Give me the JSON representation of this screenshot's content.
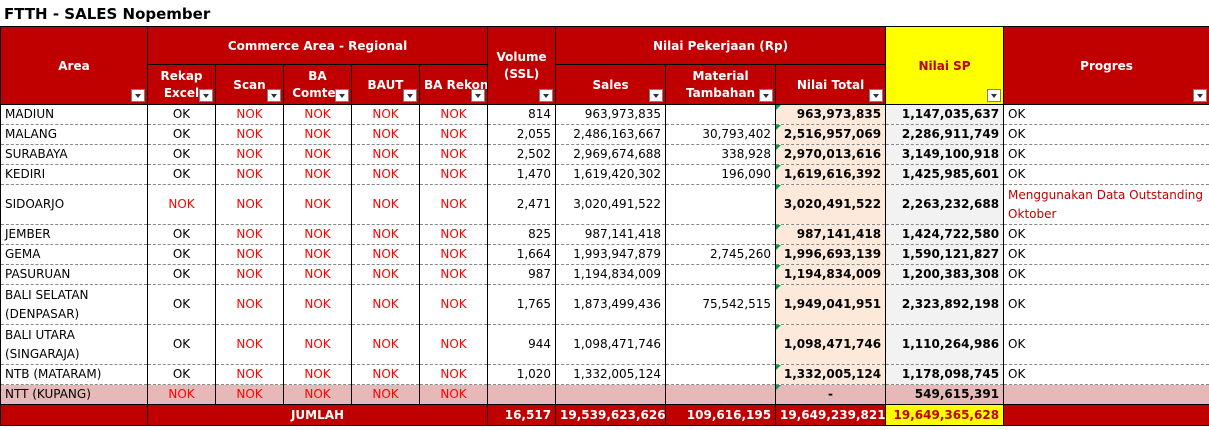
{
  "title": "FTTH - SALES Nopember",
  "headers": {
    "area": "Area",
    "commerce_group": "Commerce Area - Regional",
    "rekap_excel": "Rekap Excel",
    "scan": "Scan",
    "ba_comtes": "BA Comtes",
    "baut": "BAUT",
    "ba_rekon": "BA Rekon",
    "volume": "Volume (SSL)",
    "nilai_group": "Nilai Pekerjaan (Rp)",
    "sales": "Sales",
    "material": "Material Tambahan",
    "nilai_total": "Nilai Total",
    "nilai_sp": "Nilai SP",
    "progres": "Progres"
  },
  "rows": [
    {
      "area": "MADIUN",
      "rekap": "OK",
      "scan": "NOK",
      "ba": "NOK",
      "baut": "NOK",
      "rekon": "NOK",
      "volume": "814",
      "sales": "963,973,835",
      "material": "",
      "total": "963,973,835",
      "sp": "1,147,035,637",
      "progres": "OK"
    },
    {
      "area": "MALANG",
      "rekap": "OK",
      "scan": "NOK",
      "ba": "NOK",
      "baut": "NOK",
      "rekon": "NOK",
      "volume": "2,055",
      "sales": "2,486,163,667",
      "material": "30,793,402",
      "total": "2,516,957,069",
      "sp": "2,286,911,749",
      "progres": "OK"
    },
    {
      "area": "SURABAYA",
      "rekap": "OK",
      "scan": "NOK",
      "ba": "NOK",
      "baut": "NOK",
      "rekon": "NOK",
      "volume": "2,502",
      "sales": "2,969,674,688",
      "material": "338,928",
      "total": "2,970,013,616",
      "sp": "3,149,100,918",
      "progres": "OK"
    },
    {
      "area": "KEDIRI",
      "rekap": "OK",
      "scan": "NOK",
      "ba": "NOK",
      "baut": "NOK",
      "rekon": "NOK",
      "volume": "1,470",
      "sales": "1,619,420,302",
      "material": "196,090",
      "total": "1,619,616,392",
      "sp": "1,425,985,601",
      "progres": "OK"
    },
    {
      "area": "SIDOARJO",
      "rekap": "NOK",
      "scan": "NOK",
      "ba": "NOK",
      "baut": "NOK",
      "rekon": "NOK",
      "volume": "2,471",
      "sales": "3,020,491,522",
      "material": "",
      "total": "3,020,491,522",
      "sp": "2,263,232,688",
      "progres": "Menggunakan Data Outstanding Oktober"
    },
    {
      "area": "JEMBER",
      "rekap": "OK",
      "scan": "NOK",
      "ba": "NOK",
      "baut": "NOK",
      "rekon": "NOK",
      "volume": "825",
      "sales": "987,141,418",
      "material": "",
      "total": "987,141,418",
      "sp": "1,424,722,580",
      "progres": "OK"
    },
    {
      "area": "GEMA",
      "rekap": "OK",
      "scan": "NOK",
      "ba": "NOK",
      "baut": "NOK",
      "rekon": "NOK",
      "volume": "1,664",
      "sales": "1,993,947,879",
      "material": "2,745,260",
      "total": "1,996,693,139",
      "sp": "1,590,121,827",
      "progres": "OK"
    },
    {
      "area": "PASURUAN",
      "rekap": "OK",
      "scan": "NOK",
      "ba": "NOK",
      "baut": "NOK",
      "rekon": "NOK",
      "volume": "987",
      "sales": "1,194,834,009",
      "material": "",
      "total": "1,194,834,009",
      "sp": "1,200,383,308",
      "progres": "OK"
    },
    {
      "area": "BALI SELATAN (DENPASAR)",
      "rekap": "OK",
      "scan": "NOK",
      "ba": "NOK",
      "baut": "NOK",
      "rekon": "NOK",
      "volume": "1,765",
      "sales": "1,873,499,436",
      "material": "75,542,515",
      "total": "1,949,041,951",
      "sp": "2,323,892,198",
      "progres": "OK"
    },
    {
      "area": "BALI UTARA (SINGARAJA)",
      "rekap": "OK",
      "scan": "NOK",
      "ba": "NOK",
      "baut": "NOK",
      "rekon": "NOK",
      "volume": "944",
      "sales": "1,098,471,746",
      "material": "",
      "total": "1,098,471,746",
      "sp": "1,110,264,986",
      "progres": "OK"
    },
    {
      "area": "NTB (MATARAM)",
      "rekap": "OK",
      "scan": "NOK",
      "ba": "NOK",
      "baut": "NOK",
      "rekon": "NOK",
      "volume": "1,020",
      "sales": "1,332,005,124",
      "material": "",
      "total": "1,332,005,124",
      "sp": "1,178,098,745",
      "progres": "OK"
    },
    {
      "area": "NTT  (KUPANG)",
      "rekap": "NOK",
      "scan": "NOK",
      "ba": "NOK",
      "baut": "NOK",
      "rekon": "NOK",
      "volume": "",
      "sales": "",
      "material": "",
      "total": "-",
      "sp": "549,615,391",
      "progres": ""
    }
  ],
  "footer": {
    "label": "JUMLAH",
    "volume": "16,517",
    "sales": "19,539,623,626",
    "material": "109,616,195",
    "total": "19,649,239,821",
    "sp": "19,649,365,628"
  }
}
